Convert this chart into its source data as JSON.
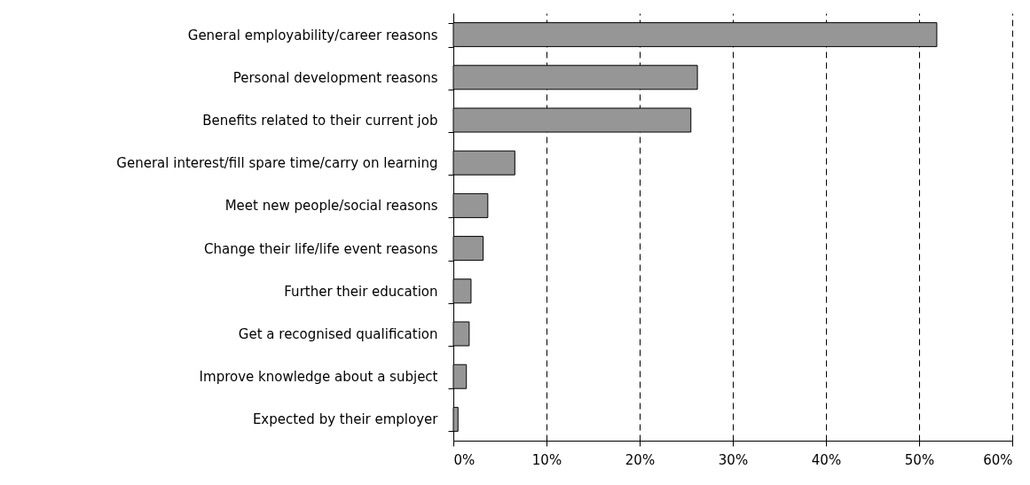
{
  "chart_data": {
    "type": "bar",
    "orientation": "horizontal",
    "categories": [
      "General employability/career reasons",
      "Personal development reasons",
      "Benefits related to their current job",
      "General interest/fill spare time/carry on learning",
      "Meet new people/social reasons",
      "Change their life/life event reasons",
      "Further their education",
      "Get a recognised qualification",
      "Improve knowledge about a subject",
      "Expected by their employer"
    ],
    "values": [
      51.9,
      26.2,
      25.5,
      6.6,
      3.7,
      3.2,
      1.9,
      1.7,
      1.4,
      0.5
    ],
    "color": "#969696",
    "xlim": [
      0,
      60
    ],
    "xticks": [
      {
        "value": 0,
        "label": "0%"
      },
      {
        "value": 10,
        "label": "10%"
      },
      {
        "value": 20,
        "label": "20%"
      },
      {
        "value": 30,
        "label": "30%"
      },
      {
        "value": 40,
        "label": "40%"
      },
      {
        "value": 50,
        "label": "50%"
      },
      {
        "value": 60,
        "label": "60%"
      }
    ],
    "grid": "x"
  }
}
